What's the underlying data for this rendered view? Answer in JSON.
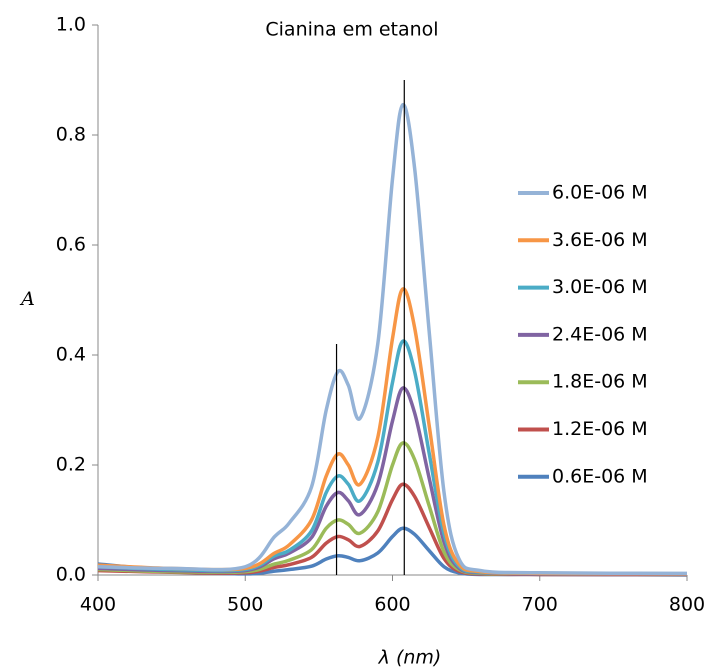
{
  "chart_data": {
    "type": "line",
    "title": "Cianina em etanol",
    "xlabel": "λ (nm)",
    "ylabel": "A",
    "xlim": [
      400,
      800
    ],
    "xticks": [
      400,
      500,
      600,
      700,
      800
    ],
    "ylim": [
      0,
      1
    ],
    "yticks": [
      {
        "value": 0,
        "label": "0.0"
      },
      0.2,
      0.4,
      0.6,
      0.8,
      {
        "value": 1,
        "label": "1.0"
      }
    ],
    "x": [
      400,
      450,
      500,
      520,
      530,
      545,
      555,
      563,
      570,
      578,
      590,
      600,
      607,
      615,
      625,
      635,
      645,
      660,
      700,
      800
    ],
    "series": [
      {
        "name": "6.0E-06 M",
        "color": "#95b3d7",
        "values": [
          0.015,
          0.012,
          0.015,
          0.07,
          0.095,
          0.16,
          0.3,
          0.37,
          0.345,
          0.285,
          0.42,
          0.72,
          0.855,
          0.74,
          0.44,
          0.15,
          0.03,
          0.008,
          0.004,
          0.003
        ]
      },
      {
        "name": "3.6E-06 M",
        "color": "#f79646",
        "values": [
          0.018,
          0.012,
          0.012,
          0.04,
          0.055,
          0.1,
          0.18,
          0.22,
          0.2,
          0.165,
          0.25,
          0.43,
          0.52,
          0.45,
          0.27,
          0.09,
          0.02,
          0.006,
          0.003,
          0.002
        ]
      },
      {
        "name": "3.0E-06 M",
        "color": "#4bacc6",
        "values": [
          0.015,
          0.01,
          0.01,
          0.035,
          0.045,
          0.08,
          0.15,
          0.18,
          0.165,
          0.135,
          0.205,
          0.35,
          0.425,
          0.37,
          0.22,
          0.075,
          0.016,
          0.005,
          0.003,
          0.002
        ]
      },
      {
        "name": "2.4E-06 M",
        "color": "#8064a2",
        "values": [
          0.012,
          0.008,
          0.008,
          0.03,
          0.04,
          0.068,
          0.125,
          0.15,
          0.135,
          0.11,
          0.165,
          0.28,
          0.34,
          0.295,
          0.175,
          0.06,
          0.013,
          0.004,
          0.002,
          0.001
        ]
      },
      {
        "name": "1.8E-06 M",
        "color": "#9bbb59",
        "values": [
          0.01,
          0.006,
          0.006,
          0.02,
          0.027,
          0.046,
          0.085,
          0.1,
          0.092,
          0.076,
          0.115,
          0.2,
          0.24,
          0.21,
          0.125,
          0.042,
          0.01,
          0.003,
          0.002,
          0.001
        ]
      },
      {
        "name": "1.2E-06 M",
        "color": "#c0504d",
        "values": [
          0.008,
          0.005,
          0.004,
          0.014,
          0.019,
          0.032,
          0.058,
          0.07,
          0.064,
          0.052,
          0.08,
          0.137,
          0.165,
          0.143,
          0.086,
          0.03,
          0.007,
          0.002,
          0.001,
          0.001
        ]
      },
      {
        "name": "0.6E-06 M",
        "color": "#4f81bd",
        "values": [
          0.02,
          0.008,
          0.002,
          0.007,
          0.01,
          0.016,
          0.029,
          0.035,
          0.032,
          0.026,
          0.04,
          0.07,
          0.085,
          0.074,
          0.044,
          0.015,
          0.004,
          0.001,
          0.001,
          0
        ]
      }
    ],
    "reference_lines": [
      {
        "x": 562,
        "top": 0.42
      },
      {
        "x": 608,
        "top": 0.9
      }
    ]
  }
}
